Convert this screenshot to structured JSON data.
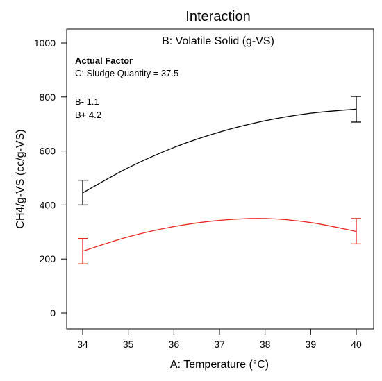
{
  "chart_data": {
    "type": "line",
    "title": "Interaction",
    "subtitle": "B: Volatile Solid (g-VS)",
    "xlabel": "A: Temperature (°C)",
    "ylabel": "CH4/g-VS (cc/g-VS)",
    "xlim": [
      34,
      40
    ],
    "ylim": [
      0,
      1000
    ],
    "xticks": [
      "34",
      "35",
      "36",
      "37",
      "38",
      "39",
      "40"
    ],
    "yticks": [
      "0",
      "200",
      "400",
      "600",
      "800",
      "1000"
    ],
    "annotation": {
      "heading": "Actual Factor",
      "factor": "C: Sludge Quantity = 37.5"
    },
    "series": [
      {
        "name": "B- 1.1",
        "color": "#000000",
        "label_color": "#1f3b4d",
        "x": [
          34,
          35,
          36,
          37,
          38,
          39,
          40
        ],
        "y": [
          445,
          538,
          613,
          670,
          712,
          740,
          755
        ],
        "errors": [
          {
            "x": 34,
            "low": 400,
            "high": 492
          },
          {
            "x": 40,
            "low": 707,
            "high": 802
          }
        ]
      },
      {
        "name": "B+ 4.2",
        "color": "#e8261f",
        "label_color": "#e8261f",
        "x": [
          34,
          35,
          36,
          37,
          38,
          39,
          40
        ],
        "y": [
          229,
          282,
          320,
          343,
          350,
          335,
          302
        ],
        "errors": [
          {
            "x": 34,
            "low": 182,
            "high": 276
          },
          {
            "x": 40,
            "low": 256,
            "high": 350
          }
        ]
      }
    ]
  }
}
